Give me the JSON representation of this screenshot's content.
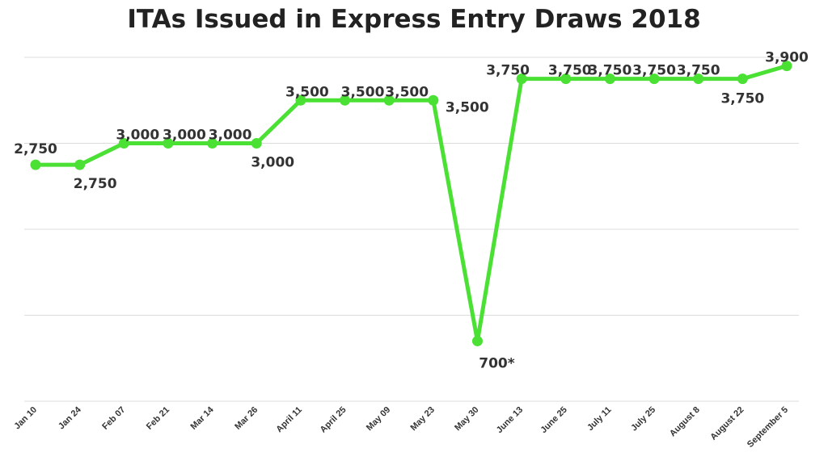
{
  "chart_data": {
    "type": "line",
    "title": "ITAs Issued in Express Entry Draws 2018",
    "xlabel": "",
    "ylabel": "",
    "categories": [
      "Jan 10",
      "Jan 24",
      "Feb 07",
      "Feb 21",
      "Mar 14",
      "Mar 26",
      "April 11",
      "April 25",
      "May 09",
      "May 23",
      "May 30",
      "June 13",
      "June 25",
      "July 11",
      "July 25",
      "August 8",
      "August 22",
      "September 5"
    ],
    "series": [
      {
        "values": [
          2750,
          2750,
          3000,
          3000,
          3000,
          3000,
          3500,
          3500,
          3500,
          3500,
          700,
          3750,
          3750,
          3750,
          3750,
          3750,
          3750,
          3900
        ],
        "data_labels": [
          "2,750",
          "2,750",
          "3,000",
          "3,000",
          "3,000",
          "3,000",
          "3,500",
          "3,500",
          "3,500",
          "3,500",
          "700*",
          "3,750",
          "3,750",
          "3,750",
          "3,750",
          "3,750",
          "3,750",
          "3,900"
        ],
        "color": "#4be134"
      }
    ],
    "ylim": [
      0,
      4000
    ],
    "grid": true,
    "legend": "none"
  }
}
